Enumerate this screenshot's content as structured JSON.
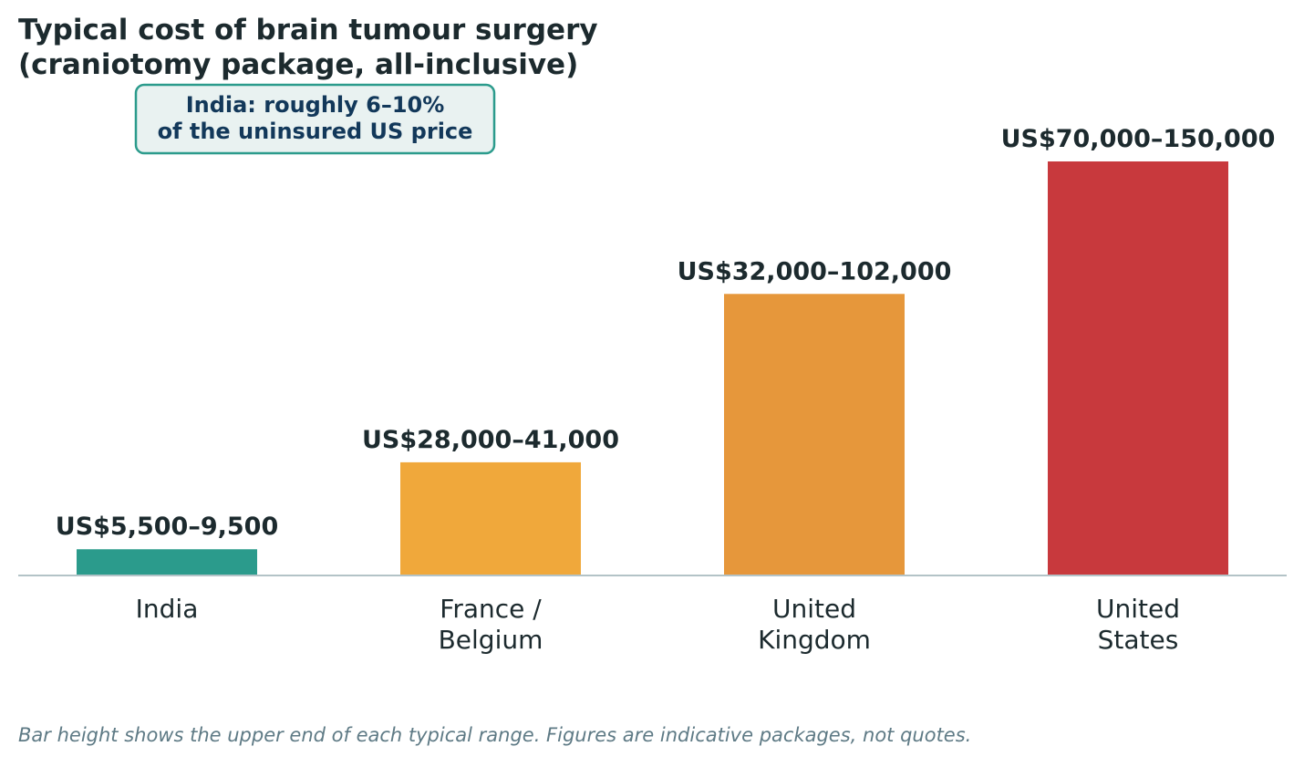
{
  "chart_data": {
    "type": "bar",
    "title": "Typical cost of brain tumour surgery\n(craniotomy package, all-inclusive)",
    "categories": [
      "India",
      "France /\nBelgium",
      "United\nKingdom",
      "United\nStates"
    ],
    "values": [
      9500,
      41000,
      102000,
      150000
    ],
    "range_low": [
      5500,
      28000,
      32000,
      70000
    ],
    "value_labels": [
      "US$5,500–9,500",
      "US$28,000–41,000",
      "US$32,000–102,000",
      "US$70,000–150,000"
    ],
    "colors": [
      "#2b9b8c",
      "#f0a83b",
      "#e6973b",
      "#c8393d"
    ],
    "ylim": [
      0,
      150000
    ],
    "xlabel": "",
    "ylabel": "",
    "grid": false,
    "annotation": "India: roughly 6–10%\nof the uninsured US price",
    "annotation_colors": {
      "text": "#12385a",
      "border": "#2b9b8c",
      "fill": "#e9f2f1"
    },
    "axis_color": "#b3c3c7",
    "footnote": "Bar height shows the upper end of each typical range. Figures are indicative packages, not quotes."
  }
}
